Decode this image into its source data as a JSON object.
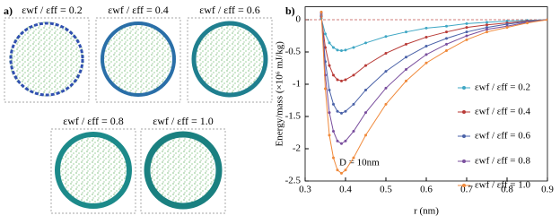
{
  "panel_a": {
    "label": "a)",
    "snapshots": [
      "εwf / εff = 0.2",
      "εwf / εff = 0.4",
      "εwf / εff = 0.6",
      "εwf / εff = 0.8",
      "εwf / εff = 1.0"
    ]
  },
  "chart_data": {
    "type": "line",
    "label": "b)",
    "x_label": "r (nm)",
    "y_label": "Energy/mass (×10⁶ mJ/kg)",
    "annotation": "D = 10nm",
    "x": [
      0.34,
      0.35,
      0.36,
      0.37,
      0.38,
      0.39,
      0.4,
      0.42,
      0.45,
      0.5,
      0.55,
      0.6,
      0.65,
      0.7,
      0.75,
      0.8,
      0.85,
      0.9
    ],
    "xlim": [
      0.3,
      0.9
    ],
    "xticks": [
      0.3,
      0.4,
      0.5,
      0.6,
      0.7,
      0.8,
      0.9
    ],
    "ylim": [
      -2.5,
      0.2
    ],
    "yticks": [
      0,
      -0.5,
      -1,
      -1.5,
      -2,
      -2.5
    ],
    "zero_line_color": "#c0504d",
    "series": [
      {
        "name": "εwf / εff = 0.2",
        "color": "#3fa7c4",
        "values": [
          0.02,
          -0.22,
          -0.36,
          -0.43,
          -0.47,
          -0.48,
          -0.47,
          -0.43,
          -0.36,
          -0.26,
          -0.19,
          -0.13,
          -0.1,
          -0.06,
          -0.04,
          -0.02,
          -0.01,
          0
        ]
      },
      {
        "name": "εwf / εff = 0.4",
        "color": "#b83a36",
        "values": [
          0.05,
          -0.43,
          -0.71,
          -0.86,
          -0.93,
          -0.95,
          -0.93,
          -0.86,
          -0.71,
          -0.52,
          -0.38,
          -0.27,
          -0.19,
          -0.12,
          -0.08,
          -0.05,
          -0.02,
          0
        ]
      },
      {
        "name": "εwf / εff = 0.6",
        "color": "#4a62a8",
        "values": [
          0.07,
          -0.65,
          -1.09,
          -1.31,
          -1.42,
          -1.45,
          -1.42,
          -1.31,
          -1.09,
          -0.8,
          -0.58,
          -0.41,
          -0.29,
          -0.19,
          -0.12,
          -0.07,
          -0.03,
          0
        ]
      },
      {
        "name": "εwf / εff = 0.8",
        "color": "#7a4f9e",
        "values": [
          0.1,
          -0.86,
          -1.44,
          -1.73,
          -1.88,
          -1.92,
          -1.88,
          -1.73,
          -1.44,
          -1.06,
          -0.77,
          -0.54,
          -0.38,
          -0.25,
          -0.15,
          -0.1,
          -0.04,
          0
        ]
      },
      {
        "name": "εwf / εff = 1.0",
        "color": "#f08a3c",
        "values": [
          0.12,
          -1.07,
          -1.79,
          -2.14,
          -2.33,
          -2.38,
          -2.33,
          -2.14,
          -1.79,
          -1.31,
          -0.95,
          -0.67,
          -0.48,
          -0.31,
          -0.19,
          -0.12,
          -0.05,
          0
        ]
      }
    ]
  }
}
